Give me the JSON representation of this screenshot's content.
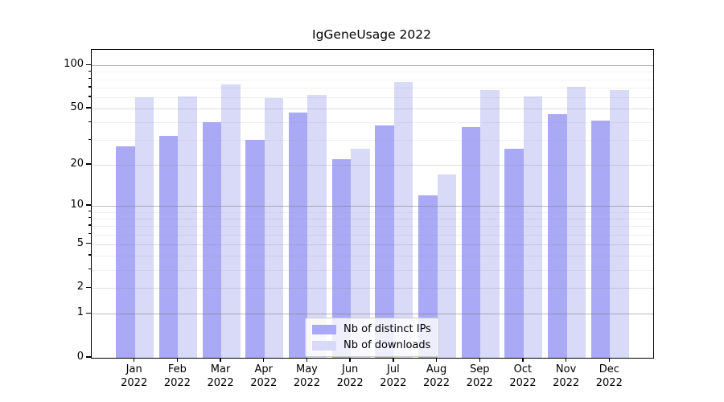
{
  "figure": {
    "background": "#ffffff"
  },
  "chart_data": {
    "type": "bar",
    "title": "IgGeneUsage 2022",
    "categories": [
      "Jan",
      "Feb",
      "Mar",
      "Apr",
      "May",
      "Jun",
      "Jul",
      "Aug",
      "Sep",
      "Oct",
      "Nov",
      "Dec"
    ],
    "category_year": "2022",
    "series": [
      {
        "name": "Nb of distinct IPs",
        "color": "#a9a9f6",
        "values": [
          27,
          32,
          40,
          30,
          47,
          22,
          38,
          12,
          37,
          26,
          46,
          41
        ]
      },
      {
        "name": "Nb of downloads",
        "color": "#d9d9f8",
        "values": [
          60,
          61,
          74,
          59,
          62,
          26,
          77,
          17,
          67,
          61,
          71,
          67
        ]
      }
    ],
    "yscale": "log1p",
    "ylim": [
      0,
      127
    ],
    "yticks_labeled": [
      0,
      1,
      2,
      5,
      10,
      20,
      50,
      100
    ],
    "ytick_labels": [
      "0",
      "1",
      "2",
      "5",
      "10",
      "20",
      "50",
      "100"
    ],
    "yticks_decade": [
      1,
      10,
      100
    ],
    "yticks_minor": [
      3,
      4,
      6,
      7,
      8,
      9,
      30,
      40,
      60,
      70,
      80,
      90
    ],
    "grid": true,
    "legend_position": "lower center",
    "xlabel": "",
    "ylabel": ""
  },
  "legend": {
    "items": [
      {
        "label": "Nb of distinct IPs",
        "color": "#a9a9f6"
      },
      {
        "label": "Nb of downloads",
        "color": "#d9d9f8"
      }
    ]
  },
  "colors": {
    "axis": "#000000",
    "grid_decade": "#9e9e9e",
    "grid_major": "#d6d6d6",
    "grid_minor": "#ececec",
    "legend_border": "#cccccc"
  }
}
